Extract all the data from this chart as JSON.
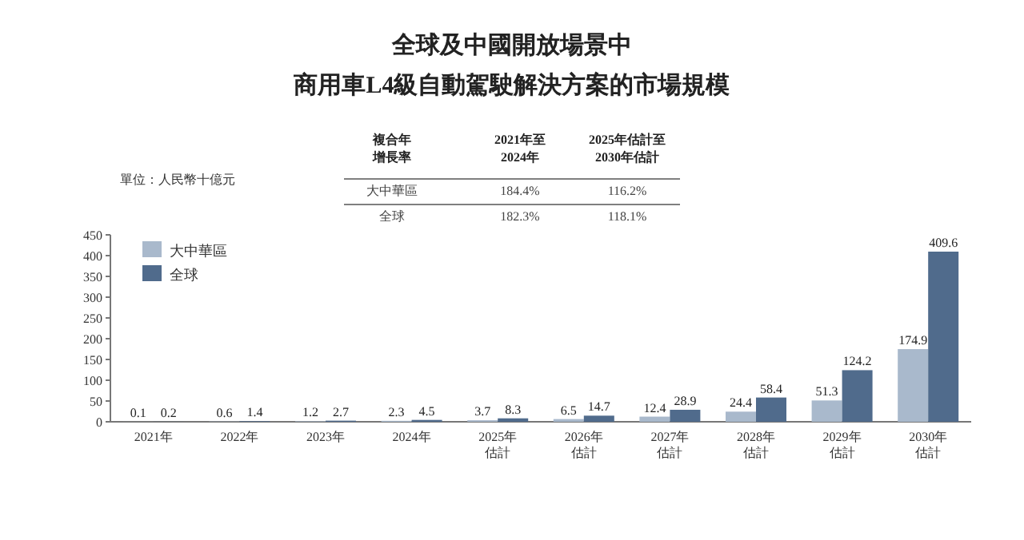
{
  "chart_data": {
    "type": "bar",
    "title": "全球及中國開放場景中",
    "subtitle": "商用車L4級自動駕駛解決方案的市場規模",
    "ylabel": "單位：人民幣十億元",
    "categories": [
      "2021年",
      "2022年",
      "2023年",
      "2024年",
      "2025年估計",
      "2026年估計",
      "2027年估計",
      "2028年估計",
      "2029年估計",
      "2030年估計"
    ],
    "series": [
      {
        "name": "大中華區",
        "color": "#a9b9cc",
        "values": [
          0.1,
          0.6,
          1.2,
          2.3,
          3.7,
          6.5,
          12.4,
          24.4,
          51.3,
          174.9
        ]
      },
      {
        "name": "全球",
        "color": "#506b8c",
        "values": [
          0.2,
          1.4,
          2.7,
          4.5,
          8.3,
          14.7,
          28.9,
          58.4,
          124.2,
          409.6
        ]
      }
    ],
    "ylim": [
      0,
      450
    ],
    "yticks": [
      0,
      50,
      100,
      150,
      200,
      250,
      300,
      350,
      400,
      450
    ],
    "data_labels": true,
    "legend": "top left",
    "grid": false,
    "annotations": [
      "複合年增長率",
      "2021年至2024年",
      "2025年估計至2030年估計",
      "大中華區",
      "184.4%",
      "116.2%",
      "全球",
      "182.3%",
      "118.1%"
    ]
  }
}
